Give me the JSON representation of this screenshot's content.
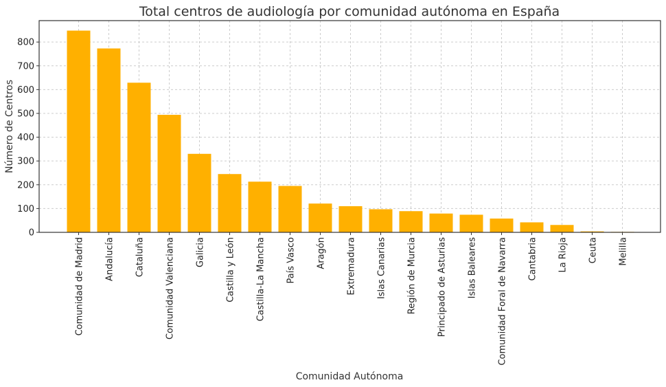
{
  "chart_data": {
    "type": "bar",
    "title": "Total centros de audiología por comunidad autónoma en España",
    "xlabel": "Comunidad Autónoma",
    "ylabel": "Número de Centros",
    "ylim": [
      0,
      890
    ],
    "yticks": [
      0,
      100,
      200,
      300,
      400,
      500,
      600,
      700,
      800
    ],
    "grid": true,
    "bar_color": "#FFB000",
    "categories": [
      "Comunidad de Madrid",
      "Andalucía",
      "Cataluña",
      "Comunidad Valenciana",
      "Galicia",
      "Castilla y León",
      "Castilla-La Mancha",
      "País Vasco",
      "Aragón",
      "Extremadura",
      "Islas Canarias",
      "Región de Murcia",
      "Principado de Asturias",
      "Islas Baleares",
      "Comunidad Foral de Navarra",
      "Cantabria",
      "La Rioja",
      "Ceuta",
      "Melilla"
    ],
    "values": [
      848,
      773,
      629,
      494,
      330,
      245,
      213,
      195,
      121,
      110,
      97,
      89,
      79,
      74,
      58,
      42,
      31,
      4,
      2
    ]
  }
}
